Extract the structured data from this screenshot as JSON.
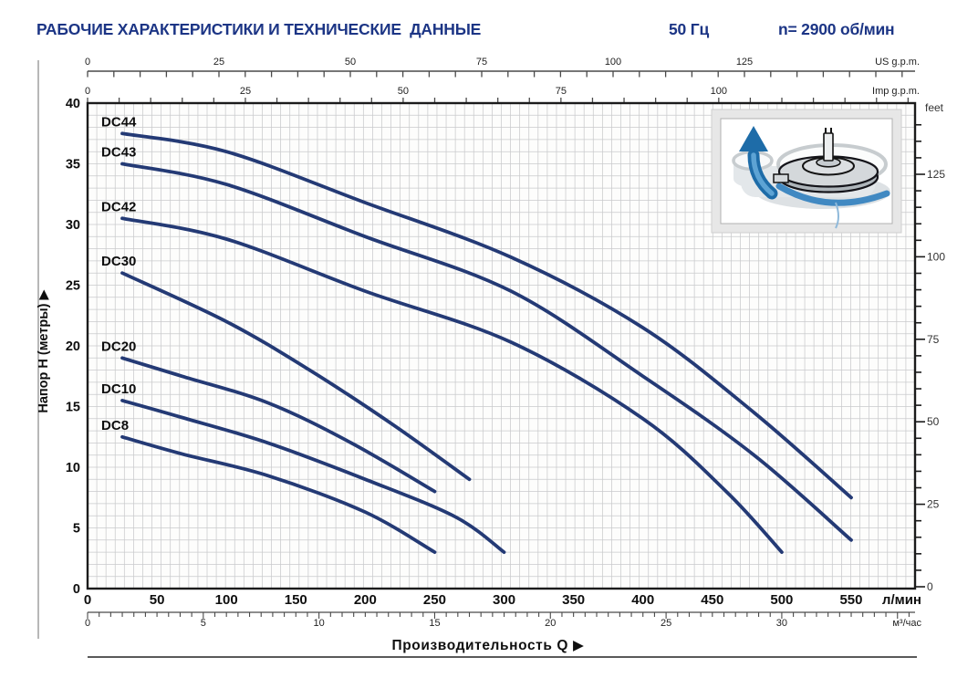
{
  "header": {
    "title": "РАБОЧИЕ ХАРАКТЕРИСТИКИ И ТЕХНИЧЕСКИЕ  ДАННЫЕ",
    "frequency": "50 Гц",
    "speed": "n= 2900 об/мин"
  },
  "axes": {
    "us_gpm": {
      "unit": "US g.p.m.",
      "labels": [
        0,
        25,
        50,
        75,
        100,
        125
      ],
      "minor_step": 5,
      "max": 155
    },
    "imp_gpm": {
      "unit": "Imp g.p.m.",
      "labels": [
        0,
        25,
        50,
        75,
        100
      ],
      "minor_step": 5,
      "max": 130
    },
    "head": {
      "label": "Напор H (метры)",
      "arrow": "▶",
      "labels": [
        0,
        5,
        10,
        15,
        20,
        25,
        30,
        35,
        40
      ]
    },
    "feet": {
      "unit": "feet",
      "labels": [
        0,
        25,
        50,
        75,
        100,
        125
      ],
      "minor_step": 5,
      "max": 140
    },
    "lpm": {
      "unit": "л/мин",
      "labels": [
        0,
        50,
        100,
        150,
        200,
        250,
        300,
        350,
        400,
        450,
        500,
        550
      ]
    },
    "m3h": {
      "unit": "м³/час",
      "labels": [
        0,
        5,
        10,
        15,
        20,
        25,
        30
      ],
      "minor_step": 0.5
    },
    "flow": {
      "label": "Производительность Q",
      "arrow": "▶"
    }
  },
  "chart_data": {
    "type": "line",
    "title": "Pump performance curves H(Q)",
    "xlabel": "Производительность Q",
    "ylabel": "Напор H (метры)",
    "x_unit": "л/мин",
    "y_unit": "м",
    "x_range": [
      0,
      596
    ],
    "y_range": [
      0,
      40
    ],
    "grid": true,
    "series": [
      {
        "name": "DC44",
        "points": [
          [
            25,
            37.5
          ],
          [
            100,
            36
          ],
          [
            200,
            31.8
          ],
          [
            305,
            27.3
          ],
          [
            400,
            21.5
          ],
          [
            480,
            14.5
          ],
          [
            550,
            7.5
          ]
        ]
      },
      {
        "name": "DC43",
        "points": [
          [
            25,
            35
          ],
          [
            100,
            33.3
          ],
          [
            200,
            29
          ],
          [
            305,
            24.5
          ],
          [
            400,
            17.5
          ],
          [
            480,
            11
          ],
          [
            550,
            4
          ]
        ]
      },
      {
        "name": "DC42",
        "points": [
          [
            25,
            30.5
          ],
          [
            100,
            28.8
          ],
          [
            200,
            24.5
          ],
          [
            305,
            20.3
          ],
          [
            400,
            14
          ],
          [
            460,
            8
          ],
          [
            500,
            3
          ]
        ]
      },
      {
        "name": "DC30",
        "points": [
          [
            25,
            26
          ],
          [
            100,
            22
          ],
          [
            160,
            18
          ],
          [
            220,
            13.5
          ],
          [
            275,
            9
          ]
        ]
      },
      {
        "name": "DC20",
        "points": [
          [
            25,
            19
          ],
          [
            68,
            17.5
          ],
          [
            130,
            15.3
          ],
          [
            190,
            12
          ],
          [
            250,
            8
          ]
        ]
      },
      {
        "name": "DC10",
        "points": [
          [
            25,
            15.5
          ],
          [
            68,
            14.1
          ],
          [
            130,
            12
          ],
          [
            200,
            9
          ],
          [
            265,
            5.9
          ],
          [
            300,
            3
          ]
        ]
      },
      {
        "name": "DC8",
        "points": [
          [
            25,
            12.5
          ],
          [
            68,
            11.1
          ],
          [
            130,
            9.3
          ],
          [
            200,
            6.3
          ],
          [
            250,
            3
          ]
        ]
      }
    ]
  },
  "inset": {
    "description": "pump impeller flow illustration",
    "arrow_color": "#1e6ca8"
  },
  "colors": {
    "title": "#1c3585",
    "curve": "#243a75",
    "grid": "#c9cacc",
    "axis": "#4a4a4a",
    "border": "#1b1b1b",
    "text": "#111111"
  }
}
